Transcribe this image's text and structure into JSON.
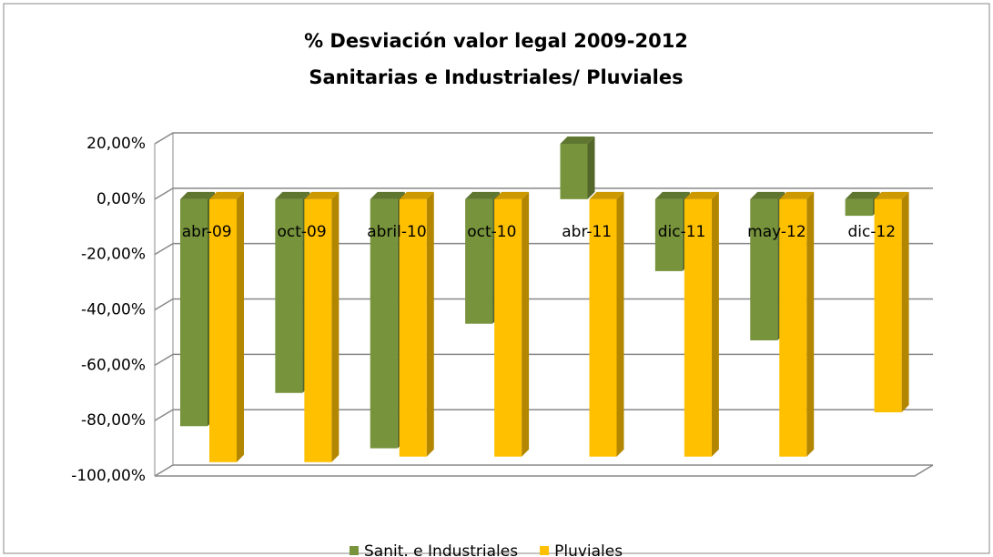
{
  "chart_data": {
    "type": "bar",
    "title": "% Desviación valor legal 2009-2012",
    "subtitle": "Sanitarias e Industriales/ Pluviales",
    "categories": [
      "abr-09",
      "oct-09",
      "abril-10",
      "oct-10",
      "abr-11",
      "dic-11",
      "may-12",
      "dic-12"
    ],
    "series": [
      {
        "name": "Sanit. e Industriales",
        "color": "#77933c",
        "values": [
          -82,
          -70,
          -90,
          -45,
          20,
          -26,
          -51,
          -6
        ]
      },
      {
        "name": "Pluviales",
        "color": "#ffc000",
        "values": [
          -95,
          -95,
          -93,
          -93,
          -93,
          -93,
          -93,
          -77
        ]
      }
    ],
    "ylim": [
      -100,
      20
    ],
    "yticks": [
      {
        "value": -100,
        "label": "-100,00%"
      },
      {
        "value": -80,
        "label": "-80,00%"
      },
      {
        "value": -60,
        "label": "-60,00%"
      },
      {
        "value": -40,
        "label": "-40,00%"
      },
      {
        "value": -20,
        "label": "-20,00%"
      },
      {
        "value": 0,
        "label": "0,00%"
      },
      {
        "value": 20,
        "label": "20,00%"
      }
    ],
    "grid": true,
    "legend": "bottom"
  }
}
